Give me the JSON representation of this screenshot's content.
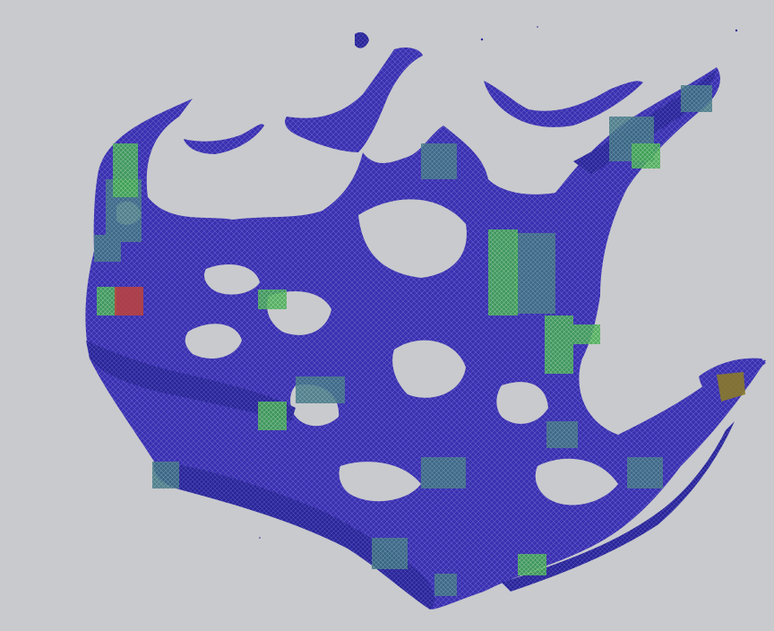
{
  "image": {
    "subject": "tissue-section-heatmap-overlay",
    "colors": {
      "background": "#c9cacd",
      "tissue": "#3a2fb0",
      "tissue_dark": "#25209a",
      "tissue_light": "#5a55c4",
      "teal": "#3f7f8f",
      "green": "#3fb04a",
      "red": "#c0423a",
      "olive": "#8a7a2a"
    }
  }
}
